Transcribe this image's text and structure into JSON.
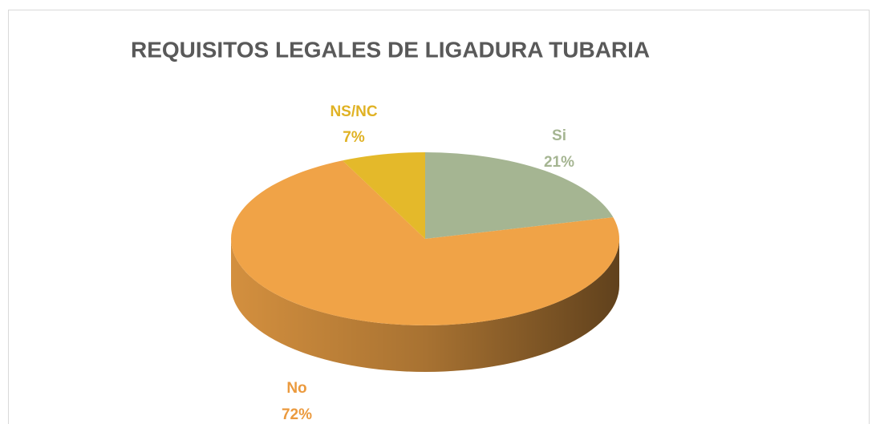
{
  "chart_data": {
    "type": "pie3d",
    "title": "REQUISITOS LEGALES DE LIGADURA TUBARIA",
    "categories": [
      "Si",
      "No",
      "NS/NC"
    ],
    "values": [
      21,
      72,
      7
    ],
    "value_labels": [
      "21%",
      "72%",
      "7%"
    ],
    "colors": [
      "#a5b592",
      "#f0a347",
      "#e4b92a"
    ],
    "label_colors": [
      "#a5b592",
      "#eb9a3e",
      "#e0b224"
    ]
  }
}
